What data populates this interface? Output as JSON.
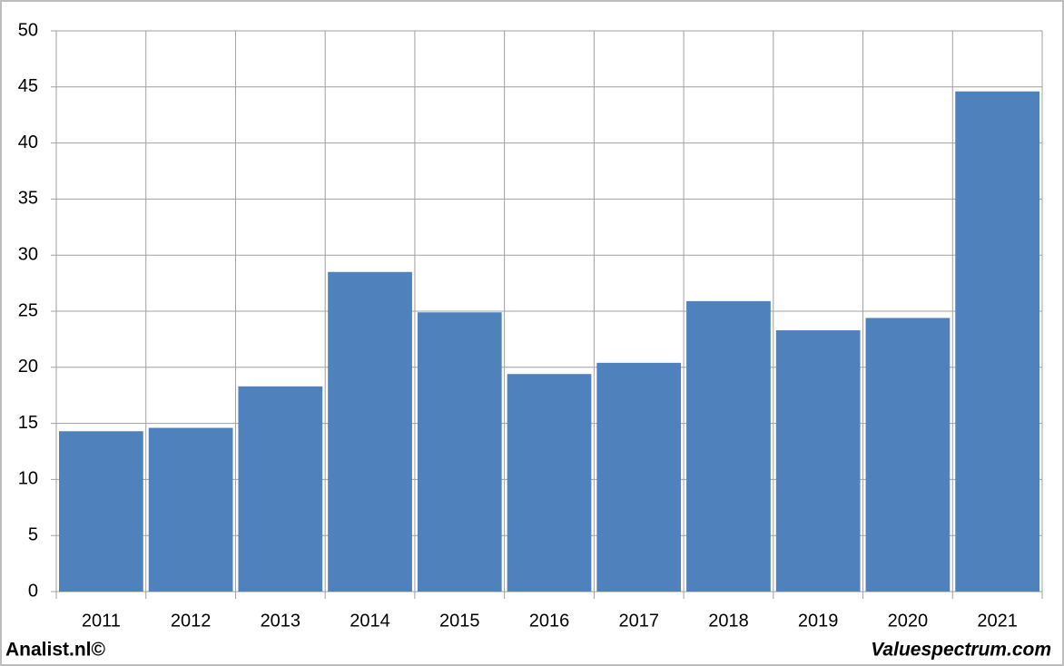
{
  "chart_data": {
    "type": "bar",
    "categories": [
      "2011",
      "2012",
      "2013",
      "2014",
      "2015",
      "2016",
      "2017",
      "2018",
      "2019",
      "2020",
      "2021"
    ],
    "values": [
      14.3,
      14.6,
      18.3,
      28.5,
      24.9,
      19.4,
      20.4,
      25.9,
      23.3,
      24.4,
      44.6
    ],
    "color": "#4f81bd",
    "ylim": [
      0,
      50
    ],
    "yticks": [
      0,
      5,
      10,
      15,
      20,
      25,
      30,
      35,
      40,
      45,
      50
    ],
    "grid": true,
    "footer_left": "Analist.nl©",
    "footer_right": "Valuespectrum.com"
  }
}
